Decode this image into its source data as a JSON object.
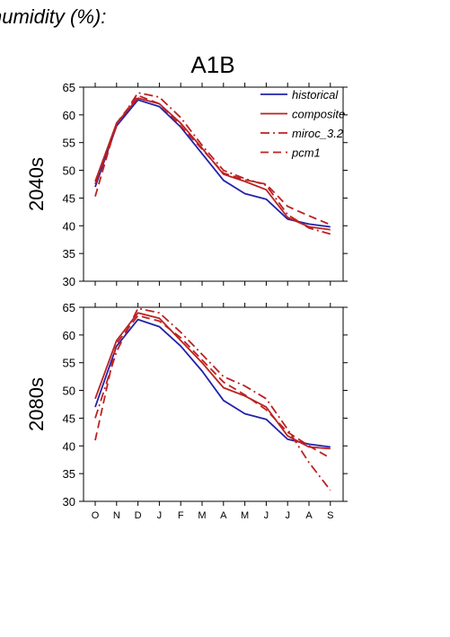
{
  "page": {
    "title": "humidity (%):"
  },
  "chart_data": {
    "type": "line",
    "scenario": "A1B",
    "categories": [
      "O",
      "N",
      "D",
      "J",
      "F",
      "M",
      "A",
      "M",
      "J",
      "J",
      "A",
      "S"
    ],
    "ylim": [
      30,
      65
    ],
    "yticks": [
      30,
      35,
      40,
      45,
      50,
      55,
      60,
      65
    ],
    "legend_position": "top-right",
    "legend": [
      {
        "name": "historical",
        "color": "#2222aa",
        "dash": "solid"
      },
      {
        "name": "composite",
        "color": "#bb2222",
        "dash": "solid"
      },
      {
        "name": "miroc_3.2",
        "color": "#bb2222",
        "dash": "dashdot"
      },
      {
        "name": "pcm1",
        "color": "#bb2222",
        "dash": "dashed"
      }
    ],
    "panels": [
      {
        "label": "2040s",
        "series": [
          {
            "name": "historical",
            "values": [
              47.0,
              58.0,
              62.7,
              61.5,
              57.8,
              53.0,
              48.2,
              45.8,
              44.8,
              41.2,
              40.3,
              39.8
            ]
          },
          {
            "name": "composite",
            "values": [
              48.0,
              58.5,
              63.0,
              62.0,
              58.5,
              54.0,
              49.3,
              48.0,
              46.5,
              41.5,
              39.8,
              39.3
            ]
          },
          {
            "name": "miroc_3.2",
            "values": [
              47.5,
              58.0,
              64.0,
              63.2,
              59.5,
              54.5,
              50.0,
              48.5,
              47.3,
              42.0,
              39.6,
              38.5
            ]
          },
          {
            "name": "pcm1",
            "values": [
              45.3,
              58.5,
              63.5,
              62.0,
              58.0,
              53.8,
              49.5,
              48.3,
              47.5,
              43.5,
              41.8,
              40.2
            ]
          }
        ]
      },
      {
        "label": "2080s",
        "series": [
          {
            "name": "historical",
            "values": [
              47.0,
              58.0,
              62.8,
              61.5,
              58.0,
              53.5,
              48.2,
              45.8,
              44.8,
              41.2,
              40.3,
              39.8
            ]
          },
          {
            "name": "composite",
            "values": [
              48.5,
              59.0,
              64.0,
              63.0,
              59.0,
              55.0,
              50.5,
              49.0,
              47.0,
              41.8,
              39.8,
              39.5
            ]
          },
          {
            "name": "miroc_3.2",
            "values": [
              45.0,
              57.0,
              64.8,
              64.0,
              60.5,
              56.5,
              52.5,
              50.8,
              48.5,
              43.0,
              37.0,
              32.0
            ]
          },
          {
            "name": "pcm1",
            "values": [
              41.0,
              58.5,
              63.5,
              62.5,
              59.5,
              55.5,
              51.5,
              49.2,
              46.5,
              42.5,
              40.0,
              37.8
            ]
          }
        ]
      }
    ]
  }
}
